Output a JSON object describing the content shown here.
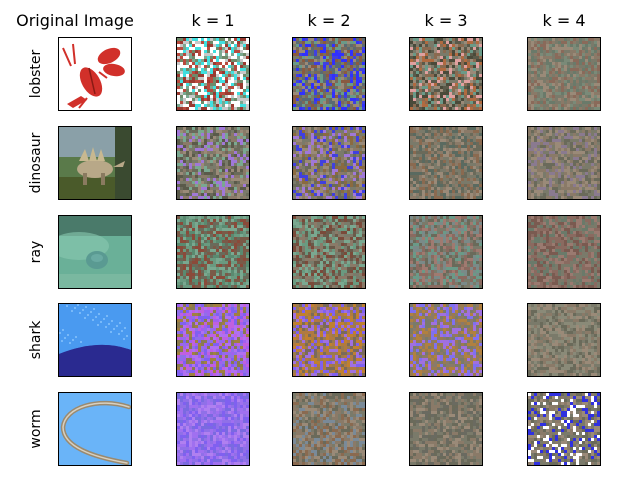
{
  "columns": [
    "Original Image",
    "k = 1",
    "k = 2",
    "k = 3",
    "k = 4"
  ],
  "rows": [
    {
      "label": "lobster",
      "original": {
        "kind": "lobster",
        "bg": "#ffffff",
        "main": "#d1302a",
        "accent": "#8a1a14"
      },
      "cells": [
        {
          "seed": 11,
          "palette": [
            "#ffffff",
            "#ffffff",
            "#9a3a30",
            "#b84a3e",
            "#6e8a6a",
            "#7aa890",
            "#40e0e0",
            "#c8c8c8"
          ]
        },
        {
          "seed": 12,
          "palette": [
            "#5a6a72",
            "#7a7a6a",
            "#4040e0",
            "#6a9a88",
            "#8a5a40",
            "#9a8a78",
            "#3030ff",
            "#7a6a5a"
          ]
        },
        {
          "seed": 13,
          "palette": [
            "#7a7a6a",
            "#8a6a50",
            "#5a5a4a",
            "#6a9a88",
            "#b06a40",
            "#9a8a78",
            "#e0a0a0",
            "#4a4a3a"
          ]
        },
        {
          "seed": 14,
          "palette": [
            "#8a7a68",
            "#7a7a6a",
            "#9a8a78",
            "#6a7a6a",
            "#8a6a5a",
            "#7a8a78"
          ]
        }
      ]
    },
    {
      "label": "dinosaur",
      "original": {
        "kind": "dinosaur",
        "bg": "#5a7a4a",
        "main": "#b8a888",
        "accent": "#3a4a2a"
      },
      "cells": [
        {
          "seed": 21,
          "palette": [
            "#7a7a6a",
            "#8a7a68",
            "#6a6a5a",
            "#9a8a78",
            "#a078d8",
            "#7aa890",
            "#5a5a4a"
          ]
        },
        {
          "seed": 22,
          "palette": [
            "#7a7a6a",
            "#8a7a68",
            "#4040e0",
            "#8a6a40",
            "#9a8a78",
            "#6a6a5a",
            "#a078d8"
          ]
        },
        {
          "seed": 23,
          "palette": [
            "#7a7a6a",
            "#8a7a68",
            "#6a6a5a",
            "#9a8a78",
            "#5a6a60",
            "#8a6a50"
          ]
        },
        {
          "seed": 24,
          "palette": [
            "#7a7a6a",
            "#8a7a68",
            "#6a6a5a",
            "#9a8a78",
            "#8a7a90"
          ]
        }
      ]
    },
    {
      "label": "ray",
      "original": {
        "kind": "ray",
        "bg": "#6ab098",
        "main": "#5a9a92",
        "accent": "#8acab0"
      },
      "cells": [
        {
          "seed": 31,
          "palette": [
            "#6a9a80",
            "#7a5a48",
            "#8a4a3a",
            "#5a8a70",
            "#7aa890",
            "#6a6a5a"
          ]
        },
        {
          "seed": 32,
          "palette": [
            "#7a7a6a",
            "#6a9a80",
            "#7a4a3a",
            "#8a7a68",
            "#6a5a4a",
            "#7aa890"
          ]
        },
        {
          "seed": 33,
          "palette": [
            "#7a7a6a",
            "#6a9a88",
            "#8a6a60",
            "#a07a70",
            "#7a8a88",
            "#6a6a5a"
          ]
        },
        {
          "seed": 34,
          "palette": [
            "#8a6a60",
            "#7a7a6a",
            "#9a7a70",
            "#7a5a50",
            "#6a7a6a"
          ]
        }
      ]
    },
    {
      "label": "shark",
      "original": {
        "kind": "shark",
        "bg": "#3a3ab0",
        "main": "#4a9af0",
        "accent": "#2a2a90"
      },
      "cells": [
        {
          "seed": 41,
          "palette": [
            "#a060f0",
            "#8060f0",
            "#9070e8",
            "#c060e0",
            "#a08040",
            "#8a7a50",
            "#b070f0"
          ]
        },
        {
          "seed": 42,
          "palette": [
            "#8060f0",
            "#b07a40",
            "#9a7a50",
            "#a070e0",
            "#7a6a5a",
            "#c08030"
          ]
        },
        {
          "seed": 43,
          "palette": [
            "#8a7a68",
            "#8070f0",
            "#9a7a50",
            "#7a7a6a",
            "#a070e0",
            "#b08040"
          ]
        },
        {
          "seed": 44,
          "palette": [
            "#8a7a68",
            "#7a7a6a",
            "#9a8a78",
            "#6a6a5a",
            "#8a8a78"
          ]
        }
      ]
    },
    {
      "label": "worm",
      "original": {
        "kind": "worm",
        "bg": "#6ab4f8",
        "main": "#9a8a70",
        "accent": "#d8d0c0"
      },
      "cells": [
        {
          "seed": 51,
          "palette": [
            "#8060f0",
            "#a070f0",
            "#9070e8",
            "#b080f0",
            "#7a6ae0"
          ]
        },
        {
          "seed": 52,
          "palette": [
            "#7a7a6a",
            "#8a7a68",
            "#6a6a5a",
            "#9a8a78",
            "#7a8a98",
            "#8a6a50"
          ]
        },
        {
          "seed": 53,
          "palette": [
            "#7a7a6a",
            "#8a7a68",
            "#6a6a5a",
            "#9a8a78",
            "#6a6a60"
          ]
        },
        {
          "seed": 54,
          "palette": [
            "#7a7a6a",
            "#8a7a68",
            "#6a6a5a",
            "#9a8a78",
            "#ffffff",
            "#3030e0"
          ]
        }
      ]
    }
  ]
}
